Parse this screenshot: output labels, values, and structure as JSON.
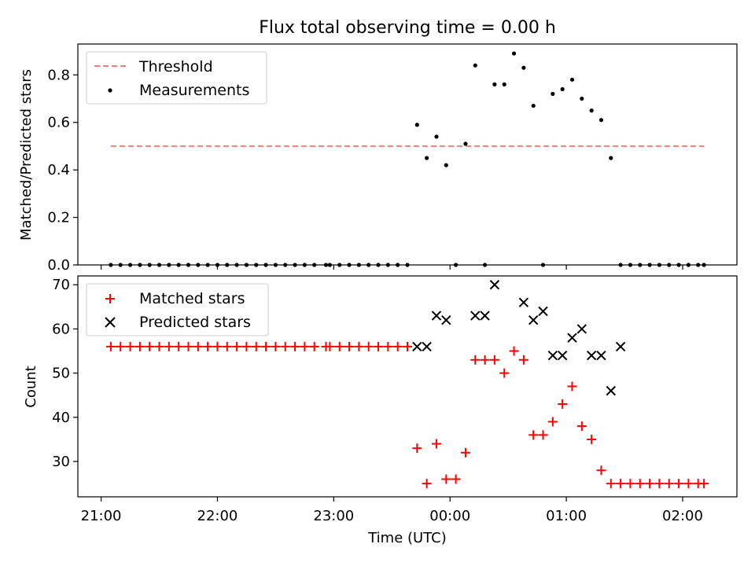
{
  "chart_data": [
    {
      "type": "scatter",
      "title": "Flux total observing time = 0.00 h",
      "xlabel": "",
      "ylabel": "Matched/Predicted stars",
      "ylim": [
        0,
        0.93
      ],
      "yticks": [
        "0.0",
        "0.2",
        "0.4",
        "0.6",
        "0.8"
      ],
      "ytick_values": [
        0,
        0.2,
        0.4,
        0.6,
        0.8
      ],
      "legend_position": "top-left",
      "threshold": {
        "name": "Threshold",
        "y": 0.5,
        "x_start": "21:05",
        "x_end": "02:11",
        "color": "#ff7a7a"
      },
      "series": [
        {
          "name": "Measurements",
          "marker": "dot",
          "color": "#000000",
          "x": [
            "21:05",
            "21:10",
            "21:15",
            "21:20",
            "21:25",
            "21:30",
            "21:35",
            "21:40",
            "21:45",
            "21:50",
            "21:55",
            "22:00",
            "22:05",
            "22:10",
            "22:15",
            "22:20",
            "22:25",
            "22:30",
            "22:35",
            "22:40",
            "22:45",
            "22:50",
            "22:56",
            "22:58",
            "23:03",
            "23:08",
            "23:13",
            "23:18",
            "23:23",
            "23:28",
            "23:33",
            "23:38",
            "23:43",
            "23:48",
            "23:53",
            "23:58",
            "00:03",
            "00:08",
            "00:13",
            "00:18",
            "00:23",
            "00:28",
            "00:33",
            "00:38",
            "00:43",
            "00:48",
            "00:53",
            "00:58",
            "01:03",
            "01:08",
            "01:13",
            "01:18",
            "01:23",
            "01:28",
            "01:33",
            "01:38",
            "01:43",
            "01:48",
            "01:53",
            "01:58",
            "02:03",
            "02:08",
            "02:11"
          ],
          "y": [
            0,
            0,
            0,
            0,
            0,
            0,
            0,
            0,
            0,
            0,
            0,
            0,
            0,
            0,
            0,
            0,
            0,
            0,
            0,
            0,
            0,
            0,
            0,
            0,
            0,
            0,
            0,
            0,
            0,
            0,
            0,
            0,
            0.59,
            0.45,
            0.54,
            0.42,
            0,
            0.51,
            0.84,
            0,
            0.76,
            0.76,
            0.89,
            0.83,
            0.67,
            0,
            0.72,
            0.74,
            0.78,
            0.7,
            0.65,
            0.61,
            0.45,
            0,
            0,
            0,
            0,
            0,
            0,
            0,
            0,
            0,
            0
          ]
        }
      ]
    },
    {
      "type": "scatter",
      "title": "",
      "xlabel": "Time (UTC)",
      "ylabel": "Count",
      "ylim": [
        22,
        72
      ],
      "yticks": [
        "30",
        "40",
        "50",
        "60",
        "70"
      ],
      "ytick_values": [
        30,
        40,
        50,
        60,
        70
      ],
      "xlim": [
        "20:48",
        "02:28"
      ],
      "xticks": [
        "21:00",
        "22:00",
        "23:00",
        "00:00",
        "01:00",
        "02:00"
      ],
      "legend_position": "top-left",
      "series": [
        {
          "name": "Matched stars",
          "marker": "plus",
          "color": "#ff0000",
          "x": [
            "21:05",
            "21:10",
            "21:15",
            "21:20",
            "21:25",
            "21:30",
            "21:35",
            "21:40",
            "21:45",
            "21:50",
            "21:55",
            "22:00",
            "22:05",
            "22:10",
            "22:15",
            "22:20",
            "22:25",
            "22:30",
            "22:35",
            "22:40",
            "22:45",
            "22:50",
            "22:56",
            "22:58",
            "23:03",
            "23:08",
            "23:13",
            "23:18",
            "23:23",
            "23:28",
            "23:33",
            "23:38",
            "23:43",
            "23:48",
            "23:53",
            "23:58",
            "00:03",
            "00:08",
            "00:13",
            "00:18",
            "00:23",
            "00:28",
            "00:33",
            "00:38",
            "00:43",
            "00:48",
            "00:53",
            "00:58",
            "01:03",
            "01:08",
            "01:13",
            "01:18",
            "01:23",
            "01:28",
            "01:33",
            "01:38",
            "01:43",
            "01:48",
            "01:53",
            "01:58",
            "02:03",
            "02:08",
            "02:11"
          ],
          "y": [
            56,
            56,
            56,
            56,
            56,
            56,
            56,
            56,
            56,
            56,
            56,
            56,
            56,
            56,
            56,
            56,
            56,
            56,
            56,
            56,
            56,
            56,
            56,
            56,
            56,
            56,
            56,
            56,
            56,
            56,
            56,
            56,
            33,
            25,
            34,
            26,
            26,
            32,
            53,
            53,
            53,
            50,
            55,
            53,
            36,
            36,
            39,
            43,
            47,
            38,
            35,
            28,
            25,
            25,
            25,
            25,
            25,
            25,
            25,
            25,
            25,
            25,
            25
          ]
        },
        {
          "name": "Predicted stars",
          "marker": "x",
          "color": "#000000",
          "x": [
            "23:43",
            "23:48",
            "23:53",
            "23:58",
            "00:13",
            "00:18",
            "00:23",
            "00:38",
            "00:43",
            "00:48",
            "00:53",
            "00:58",
            "01:03",
            "01:08",
            "01:13",
            "01:18",
            "01:23",
            "01:28"
          ],
          "y": [
            56,
            56,
            63,
            62,
            63,
            63,
            70,
            66,
            62,
            64,
            54,
            54,
            58,
            60,
            54,
            54,
            46,
            56
          ]
        }
      ]
    }
  ]
}
